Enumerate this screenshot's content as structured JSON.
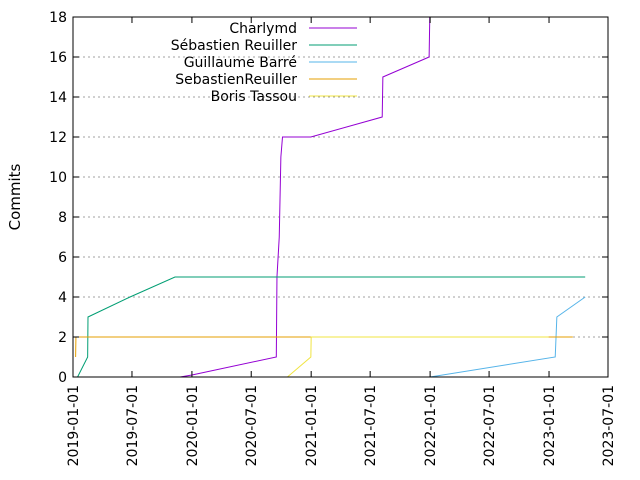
{
  "chart_data": {
    "type": "line",
    "title": "",
    "xlabel": "",
    "ylabel": "Commits",
    "x_axis": "date",
    "xlim": [
      "2019-01-01",
      "2023-07-01"
    ],
    "ylim": [
      0,
      18
    ],
    "x_ticks": [
      "2019-01-01",
      "2019-07-01",
      "2020-01-01",
      "2020-07-01",
      "2021-01-01",
      "2021-07-01",
      "2022-01-01",
      "2022-07-01",
      "2023-01-01",
      "2023-07-01"
    ],
    "y_ticks": [
      0,
      2,
      4,
      6,
      8,
      10,
      12,
      14,
      16,
      18
    ],
    "grid": "horizontal, dotted",
    "legend_position": "top-left",
    "series": [
      {
        "name": "Charlymd",
        "color": "#9400d3",
        "points": [
          [
            "2019-11-26",
            0
          ],
          [
            "2020-01-01",
            0.1
          ],
          [
            "2020-09-16",
            1
          ],
          [
            "2020-09-18",
            5
          ],
          [
            "2020-09-25",
            7
          ],
          [
            "2020-09-30",
            11
          ],
          [
            "2020-10-05",
            12
          ],
          [
            "2020-12-31",
            12
          ],
          [
            "2021-08-07",
            13
          ],
          [
            "2021-08-09",
            15
          ],
          [
            "2021-12-29",
            16
          ],
          [
            "2021-12-30",
            17
          ],
          [
            "2021-12-31",
            18
          ]
        ]
      },
      {
        "name": "Sébastien Reuiller",
        "color": "#009e73",
        "points": [
          [
            "2019-01-15",
            0
          ],
          [
            "2019-02-15",
            1
          ],
          [
            "2019-02-16",
            3
          ],
          [
            "2019-06-25",
            4
          ],
          [
            "2019-11-10",
            5
          ],
          [
            "2023-04-22",
            5
          ]
        ]
      },
      {
        "name": "Guillaume Barré",
        "color": "#56b4e9",
        "points": [
          [
            "2019-01-01",
            0
          ],
          [
            "2019-01-05",
            0
          ],
          [
            "2022-01-01",
            0
          ],
          [
            "2023-01-20",
            1
          ],
          [
            "2023-01-25",
            3
          ],
          [
            "2023-04-22",
            4
          ]
        ]
      },
      {
        "name": "SebastienReuiller",
        "color": "#e69f00",
        "points": [
          [
            "2019-01-09",
            1
          ],
          [
            "2019-01-10",
            2
          ],
          [
            "2023-03-15",
            2
          ]
        ]
      },
      {
        "name": "Boris Tassou",
        "color": "#f0e442",
        "points": [
          [
            "2020-10-20",
            0
          ],
          [
            "2020-12-31",
            1
          ],
          [
            "2021-01-01",
            2
          ],
          [
            "2022-12-31",
            2
          ]
        ]
      }
    ]
  }
}
